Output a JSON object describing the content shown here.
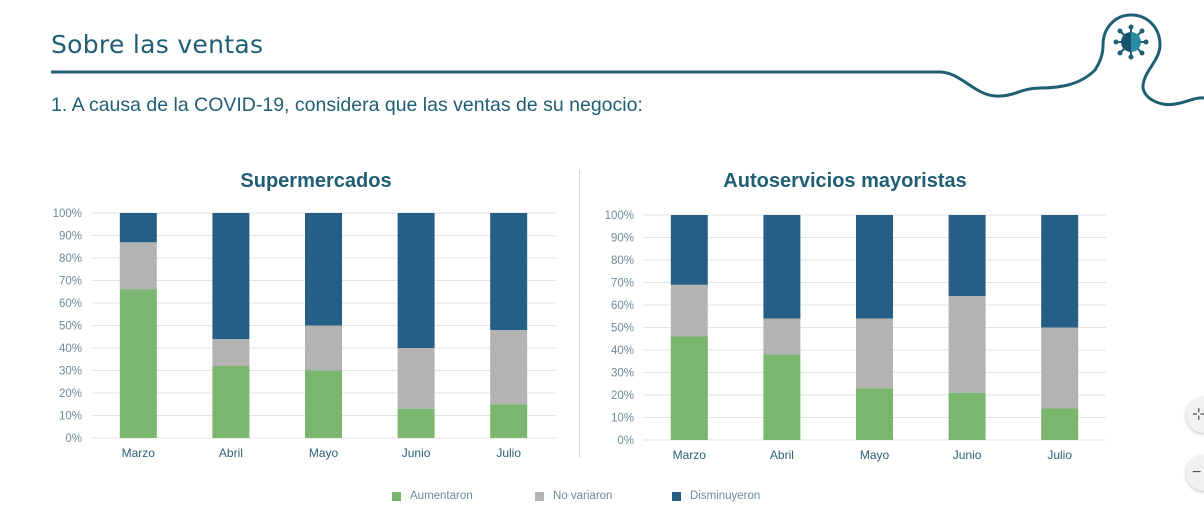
{
  "page": {
    "section_title": "Sobre las ventas",
    "question": "1. A causa de la COVID-19, considera que las ventas de su negocio:",
    "decoration_icon": "virus-icon",
    "floating_buttons": [
      {
        "icon": "fit-icon",
        "glyph": "⊹"
      },
      {
        "icon": "zoom-out-icon",
        "glyph": "−"
      }
    ]
  },
  "colors": {
    "Aumentaron": "#7bb66e",
    "No variaron": "#b3b3b3",
    "Disminuyeron": "#265f85",
    "title": "#1f5e73",
    "grid": "#e3e3e3",
    "tick": "#6d8a98"
  },
  "legend": [
    {
      "label": "Aumentaron",
      "color": "#7bb66e"
    },
    {
      "label": "No variaron",
      "color": "#b3b3b3"
    },
    {
      "label": "Disminuyeron",
      "color": "#265f85"
    }
  ],
  "chart_data": [
    {
      "type": "bar",
      "stacked": true,
      "title": "Supermercados",
      "xlabel": "",
      "ylabel": "",
      "categories": [
        "Marzo",
        "Abril",
        "Mayo",
        "Junio",
        "Julio"
      ],
      "yticks": [
        "0%",
        "10%",
        "20%",
        "30%",
        "40%",
        "50%",
        "60%",
        "70%",
        "80%",
        "90%",
        "100%"
      ],
      "ylim": [
        0,
        100
      ],
      "grid": true,
      "legend": "bottom",
      "series": [
        {
          "name": "Aumentaron",
          "values": [
            66,
            32,
            30,
            13,
            15
          ]
        },
        {
          "name": "No variaron",
          "values": [
            21,
            12,
            20,
            27,
            33
          ]
        },
        {
          "name": "Disminuyeron",
          "values": [
            13,
            56,
            50,
            60,
            52
          ]
        }
      ]
    },
    {
      "type": "bar",
      "stacked": true,
      "title": "Autoservicios mayoristas",
      "xlabel": "",
      "ylabel": "",
      "categories": [
        "Marzo",
        "Abril",
        "Mayo",
        "Junio",
        "Julio"
      ],
      "yticks": [
        "0%",
        "10%",
        "20%",
        "30%",
        "40%",
        "50%",
        "60%",
        "70%",
        "80%",
        "90%",
        "100%"
      ],
      "ylim": [
        0,
        100
      ],
      "grid": true,
      "legend": "bottom",
      "series": [
        {
          "name": "Aumentaron",
          "values": [
            46,
            38,
            23,
            21,
            14
          ]
        },
        {
          "name": "No variaron",
          "values": [
            23,
            16,
            31,
            43,
            36
          ]
        },
        {
          "name": "Disminuyeron",
          "values": [
            31,
            46,
            46,
            36,
            50
          ]
        }
      ]
    }
  ]
}
